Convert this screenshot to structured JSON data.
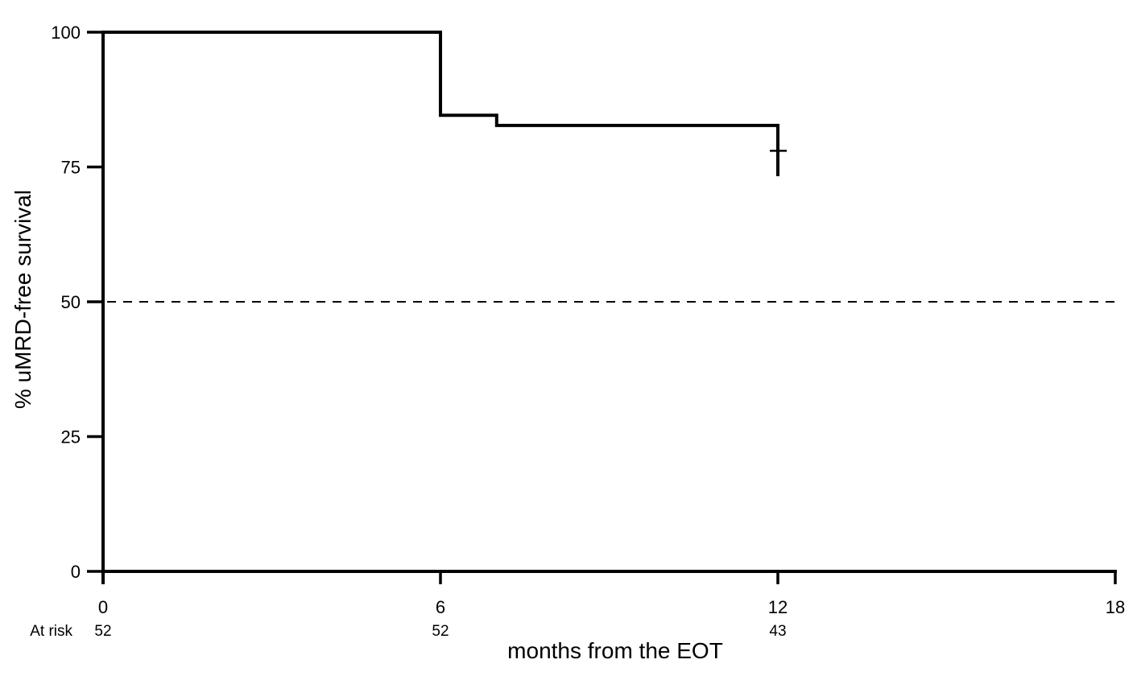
{
  "figure": {
    "background": "#ffffff",
    "ink_color": "#000000"
  },
  "chart_data": {
    "type": "line",
    "subtype": "kaplan-meier-step",
    "title": "",
    "xlabel": "months from the EOT",
    "ylabel": "% uMRD-free survival",
    "xlim": [
      0,
      18
    ],
    "ylim": [
      0,
      100
    ],
    "x_ticks": [
      "0",
      "6",
      "12",
      "18"
    ],
    "x_tick_values": [
      0,
      6,
      12,
      18
    ],
    "y_ticks": [
      "0",
      "25",
      "50",
      "75",
      "100"
    ],
    "y_tick_values": [
      0,
      25,
      50,
      75,
      100
    ],
    "grid": false,
    "legend": "none",
    "series": [
      {
        "name": "uMRD-free survival",
        "color": "#000000",
        "step_points": [
          [
            0,
            100
          ],
          [
            6,
            100
          ],
          [
            6,
            84.6
          ],
          [
            7,
            84.6
          ],
          [
            7,
            82.7
          ],
          [
            12,
            82.7
          ]
        ]
      }
    ],
    "terminal_censor_mark": {
      "time": 12,
      "tick_at_pct": 78,
      "whisker_from_pct": 82.7,
      "whisker_to_pct": 73.3
    },
    "reference_line": {
      "value_pct": 50,
      "style": "dashed"
    },
    "at_risk": {
      "label": "At risk",
      "times": [
        0,
        6,
        12
      ],
      "counts": [
        "52",
        "52",
        "43"
      ]
    }
  }
}
